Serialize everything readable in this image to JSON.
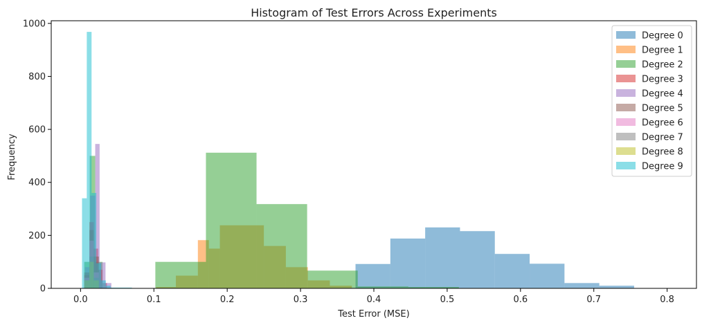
{
  "chart_data": {
    "type": "histogram",
    "title": "Histogram of Test Errors Across Experiments",
    "xlabel": "Test Error (MSE)",
    "ylabel": "Frequency",
    "xlim": [
      -0.04,
      0.84
    ],
    "ylim": [
      0,
      1010
    ],
    "xticks": [
      "0.0",
      "0.1",
      "0.2",
      "0.3",
      "0.4",
      "0.5",
      "0.6",
      "0.7",
      "0.8"
    ],
    "yticks": [
      "0",
      "200",
      "400",
      "600",
      "800",
      "1000"
    ],
    "grid": false,
    "legend_position": "top-right",
    "bar_opacity": 0.5,
    "series": [
      {
        "name": "Degree 0",
        "color": "#1f77b4",
        "bins": [
          [
            0.375,
            0.4225,
            92
          ],
          [
            0.4225,
            0.47,
            188
          ],
          [
            0.47,
            0.5175,
            230
          ],
          [
            0.5175,
            0.565,
            216
          ],
          [
            0.565,
            0.6125,
            130
          ],
          [
            0.6125,
            0.66,
            93
          ],
          [
            0.66,
            0.7075,
            20
          ],
          [
            0.7075,
            0.755,
            10
          ]
        ]
      },
      {
        "name": "Degree 1",
        "color": "#ff7f0e",
        "bins": [
          [
            0.103,
            0.13,
            5
          ],
          [
            0.13,
            0.16,
            48
          ],
          [
            0.16,
            0.175,
            182
          ],
          [
            0.175,
            0.19,
            150
          ],
          [
            0.19,
            0.25,
            238
          ],
          [
            0.25,
            0.28,
            160
          ],
          [
            0.28,
            0.31,
            80
          ],
          [
            0.31,
            0.34,
            30
          ],
          [
            0.34,
            0.37,
            10
          ]
        ]
      },
      {
        "name": "Degree 2",
        "color": "#2ca02c",
        "bins": [
          [
            0.005,
            0.0125,
            100
          ],
          [
            0.0125,
            0.02,
            500
          ],
          [
            0.02,
            0.03,
            100
          ],
          [
            0.102,
            0.171,
            100
          ],
          [
            0.171,
            0.24,
            512
          ],
          [
            0.24,
            0.309,
            318
          ],
          [
            0.309,
            0.378,
            67
          ],
          [
            0.378,
            0.447,
            7
          ],
          [
            0.447,
            0.516,
            5
          ]
        ]
      },
      {
        "name": "Degree 3",
        "color": "#d62728",
        "bins": [
          [
            0.005,
            0.012,
            50
          ],
          [
            0.012,
            0.018,
            250
          ],
          [
            0.018,
            0.024,
            150
          ],
          [
            0.024,
            0.03,
            70
          ],
          [
            0.03,
            0.036,
            20
          ]
        ]
      },
      {
        "name": "Degree 4",
        "color": "#9467bd",
        "bins": [
          [
            0.006,
            0.013,
            80
          ],
          [
            0.013,
            0.02,
            350
          ],
          [
            0.02,
            0.026,
            545
          ],
          [
            0.026,
            0.034,
            98
          ],
          [
            0.034,
            0.042,
            20
          ]
        ]
      },
      {
        "name": "Degree 5",
        "color": "#8c564b",
        "bins": [
          [
            0.005,
            0.012,
            60
          ],
          [
            0.012,
            0.018,
            220
          ],
          [
            0.018,
            0.025,
            120
          ]
        ]
      },
      {
        "name": "Degree 6",
        "color": "#e377c2",
        "bins": [
          [
            0.005,
            0.012,
            40
          ],
          [
            0.012,
            0.018,
            180
          ],
          [
            0.018,
            0.025,
            60
          ]
        ]
      },
      {
        "name": "Degree 7",
        "color": "#7f7f7f",
        "bins": [
          [
            0.005,
            0.012,
            30
          ],
          [
            0.012,
            0.018,
            120
          ],
          [
            0.018,
            0.025,
            40
          ]
        ]
      },
      {
        "name": "Degree 8",
        "color": "#bcbd22",
        "bins": [
          [
            0.005,
            0.012,
            30
          ],
          [
            0.012,
            0.018,
            100
          ],
          [
            0.018,
            0.025,
            30
          ]
        ]
      },
      {
        "name": "Degree 9",
        "color": "#17becf",
        "bins": [
          [
            0.002,
            0.0085,
            340
          ],
          [
            0.0085,
            0.015,
            968
          ],
          [
            0.015,
            0.0215,
            360
          ],
          [
            0.0215,
            0.028,
            95
          ],
          [
            0.028,
            0.0345,
            30
          ],
          [
            0.0345,
            0.041,
            10
          ],
          [
            0.041,
            0.07,
            3
          ]
        ]
      }
    ]
  }
}
